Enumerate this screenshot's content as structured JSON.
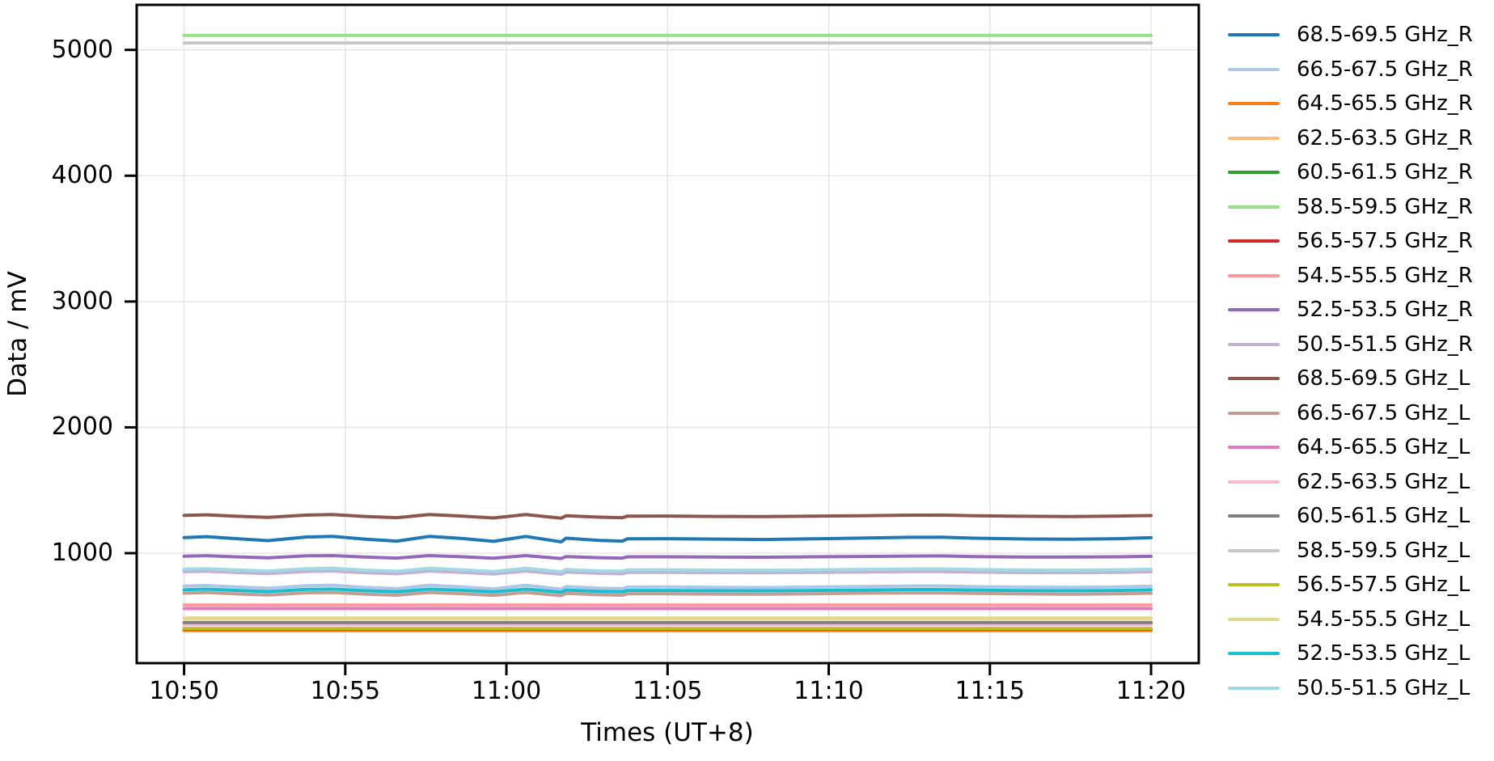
{
  "chart_data": {
    "type": "line",
    "title": "",
    "xlabel": "Times (UT+8)",
    "ylabel": "Data / mV",
    "x_tick_labels": [
      "10:50",
      "10:55",
      "11:00",
      "11:05",
      "11:10",
      "11:15",
      "11:20"
    ],
    "x_tick_minutes": [
      0,
      5,
      10,
      15,
      20,
      25,
      30
    ],
    "y_ticks": [
      1000,
      2000,
      3000,
      4000,
      5000
    ],
    "xlim_minutes": [
      -1.47,
      31.48
    ],
    "ylim": [
      126,
      5358
    ],
    "grid": true,
    "grid_color": "#e2e2e2",
    "axis_color": "#000000",
    "legend_position": "right",
    "time_start": "10:50",
    "time_end": "11:20",
    "wave_x": [
      0,
      0.7,
      1.5,
      2.6,
      3.8,
      4.6,
      5.6,
      6.6,
      7.6,
      8.6,
      9.6,
      10.6,
      11.7,
      11.85,
      12.9,
      13.6,
      13.75,
      15,
      16.5,
      18,
      19.5,
      21,
      22.5,
      23.5,
      24.5,
      26,
      27.5,
      29,
      30
    ],
    "series": [
      {
        "name": "68.5-69.5 GHz_R",
        "color": "#1f77b4",
        "values": [
          1124,
          1131,
          1117,
          1100,
          1129,
          1133,
          1112,
          1096,
          1133,
          1117,
          1094,
          1133,
          1090,
          1119,
          1102,
          1096,
          1114,
          1115,
          1112,
          1109,
          1114,
          1120,
          1126,
          1127,
          1119,
          1113,
          1111,
          1115,
          1123
        ]
      },
      {
        "name": "66.5-67.5 GHz_R",
        "color": "#aec7e8",
        "values": [
          738,
          743,
          733,
          721,
          741,
          745,
          729,
          718,
          745,
          733,
          716,
          745,
          714,
          734,
          722,
          718,
          731,
          732,
          729,
          727,
          731,
          735,
          739,
          740,
          734,
          730,
          728,
          732,
          737
        ]
      },
      {
        "name": "64.5-65.5 GHz_R",
        "color": "#ff7f0e",
        "x": [
          0,
          30
        ],
        "values": [
          385,
          385
        ]
      },
      {
        "name": "62.5-63.5 GHz_R",
        "color": "#ffbb78",
        "x": [
          0,
          30
        ],
        "values": [
          481,
          481
        ]
      },
      {
        "name": "60.5-61.5 GHz_R",
        "color": "#2ca02c",
        "x": [
          0,
          30
        ],
        "values": [
          446,
          446
        ]
      },
      {
        "name": "58.5-59.5 GHz_R",
        "color": "#98df8a",
        "x": [
          0,
          30
        ],
        "values": [
          5115,
          5115
        ]
      },
      {
        "name": "56.5-57.5 GHz_R",
        "color": "#d62728",
        "x": [
          0,
          30
        ],
        "values": [
          398,
          398
        ]
      },
      {
        "name": "54.5-55.5 GHz_R",
        "color": "#ff9896",
        "x": [
          0,
          30
        ],
        "values": [
          588,
          588
        ]
      },
      {
        "name": "52.5-53.5 GHz_R",
        "color": "#9467bd",
        "values": [
          976,
          980,
          972,
          963,
          979,
          981,
          969,
          961,
          981,
          972,
          960,
          981,
          958,
          973,
          964,
          961,
          971,
          971,
          969,
          968,
          971,
          974,
          977,
          978,
          973,
          970,
          969,
          971,
          975
        ]
      },
      {
        "name": "50.5-51.5 GHz_R",
        "color": "#c5b0d5",
        "values": [
          852,
          857,
          848,
          838,
          855,
          858,
          845,
          836,
          858,
          848,
          835,
          858,
          833,
          850,
          840,
          836,
          847,
          847,
          845,
          844,
          847,
          850,
          854,
          854,
          850,
          846,
          845,
          847,
          852
        ]
      },
      {
        "name": "68.5-69.5 GHz_L",
        "color": "#8c564b",
        "values": [
          1300,
          1305,
          1295,
          1284,
          1303,
          1307,
          1292,
          1282,
          1307,
          1295,
          1280,
          1307,
          1278,
          1297,
          1286,
          1282,
          1294,
          1295,
          1292,
          1291,
          1294,
          1298,
          1302,
          1303,
          1297,
          1293,
          1291,
          1295,
          1299
        ]
      },
      {
        "name": "66.5-67.5 GHz_L",
        "color": "#c49c94",
        "values": [
          682,
          687,
          678,
          668,
          685,
          688,
          675,
          666,
          688,
          678,
          665,
          688,
          663,
          680,
          670,
          666,
          677,
          677,
          675,
          674,
          677,
          682,
          684,
          684,
          680,
          676,
          674,
          677,
          682
        ]
      },
      {
        "name": "64.5-65.5 GHz_L",
        "color": "#e377c2",
        "x": [
          0,
          30
        ],
        "values": [
          560,
          560
        ]
      },
      {
        "name": "62.5-63.5 GHz_L",
        "color": "#f7b6d2",
        "x": [
          0,
          30
        ],
        "values": [
          432,
          432
        ]
      },
      {
        "name": "60.5-61.5 GHz_L",
        "color": "#7f7f7f",
        "x": [
          0,
          30
        ],
        "values": [
          449,
          449
        ]
      },
      {
        "name": "58.5-59.5 GHz_L",
        "color": "#c7c7c7",
        "x": [
          0,
          30
        ],
        "values": [
          5055,
          5055
        ]
      },
      {
        "name": "56.5-57.5 GHz_L",
        "color": "#bcbd22",
        "x": [
          0,
          30
        ],
        "values": [
          402,
          402
        ]
      },
      {
        "name": "54.5-55.5 GHz_L",
        "color": "#dbdb8d",
        "x": [
          0,
          30
        ],
        "values": [
          484,
          484
        ]
      },
      {
        "name": "52.5-53.5 GHz_L",
        "color": "#17becf",
        "values": [
          709,
          714,
          705,
          695,
          712,
          715,
          702,
          693,
          715,
          705,
          692,
          715,
          690,
          707,
          697,
          693,
          704,
          704,
          702,
          701,
          704,
          707,
          711,
          711,
          707,
          703,
          702,
          704,
          709
        ]
      },
      {
        "name": "50.5-51.5 GHz_L",
        "color": "#9edae5",
        "values": [
          873,
          877,
          868,
          858,
          876,
          879,
          865,
          856,
          879,
          868,
          854,
          879,
          852,
          870,
          859,
          856,
          867,
          868,
          865,
          864,
          867,
          871,
          874,
          875,
          870,
          866,
          865,
          868,
          872
        ]
      }
    ]
  }
}
